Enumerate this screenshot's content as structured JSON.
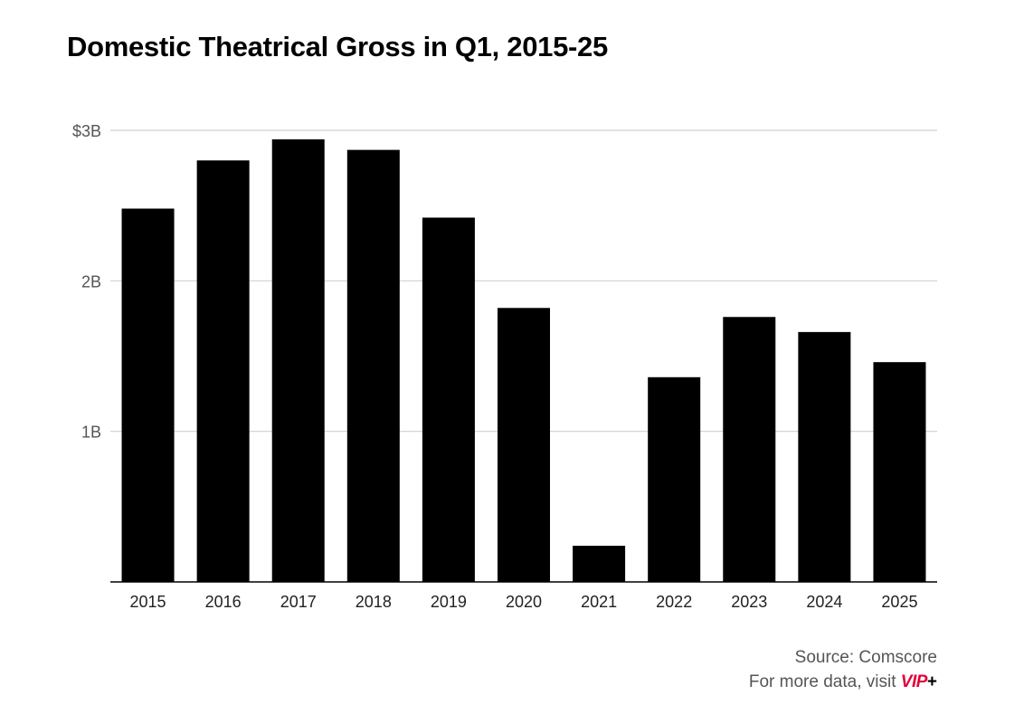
{
  "title": "Domestic Theatrical Gross in Q1, 2015-25",
  "footer": {
    "source": "Source: Comscore",
    "more_data": "For more data, visit",
    "brand": "VIP",
    "brand_plus": "+"
  },
  "colors": {
    "bar": "#000000",
    "grid": "#d0d0d0",
    "axis": "#000000",
    "tick_label": "#555555",
    "brand": "#e3003a"
  },
  "chart_data": {
    "type": "bar",
    "title": "Domestic Theatrical Gross in Q1, 2015-25",
    "xlabel": "",
    "ylabel": "",
    "unit": "billions USD",
    "categories": [
      "2015",
      "2016",
      "2017",
      "2018",
      "2019",
      "2020",
      "2021",
      "2022",
      "2023",
      "2024",
      "2025"
    ],
    "values": [
      2.48,
      2.8,
      2.94,
      2.87,
      2.42,
      1.82,
      0.24,
      1.36,
      1.76,
      1.66,
      1.46
    ],
    "ylim": [
      0,
      3
    ],
    "yticks": [
      {
        "value": 1,
        "label": "1B"
      },
      {
        "value": 2,
        "label": "2B"
      },
      {
        "value": 3,
        "label": "$3B"
      }
    ],
    "grid": true,
    "legend": "none"
  }
}
